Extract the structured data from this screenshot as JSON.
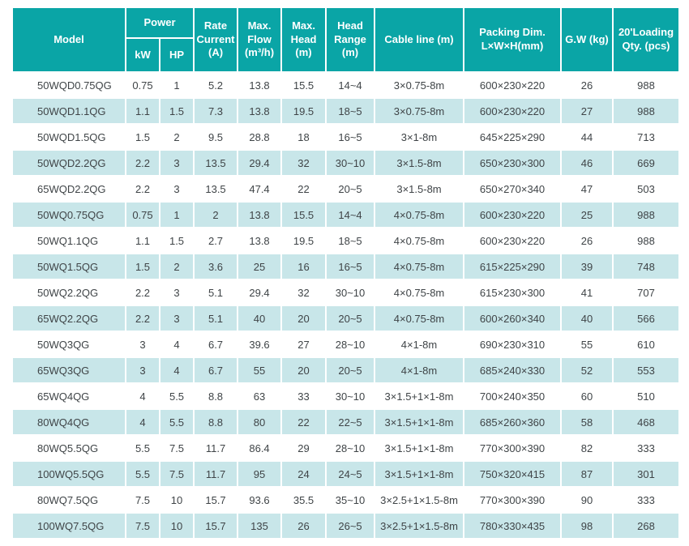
{
  "colors": {
    "header_teal": "#0aa5a6",
    "stripe_blue": "#c8e6e9",
    "text_dark": "#3f4447",
    "header_text": "#ffffff"
  },
  "table": {
    "columns": {
      "model": "Model",
      "power": "Power",
      "kw": "kW",
      "hp": "HP",
      "rate_current": "Rate Current (A)",
      "max_flow": "Max. Flow (m³/h)",
      "max_head": "Max. Head (m)",
      "head_range": "Head Range (m)",
      "cable_line": "Cable line (m)",
      "packing_dim": "Packing Dim. L×W×H(mm)",
      "gw": "G.W (kg)",
      "loading_qty": "20'Loading Qty. (pcs)"
    },
    "rows": [
      [
        "50WQD0.75QG",
        "0.75",
        "1",
        "5.2",
        "13.8",
        "15.5",
        "14~4",
        "3×0.75-8m",
        "600×230×220",
        "26",
        "988"
      ],
      [
        "50WQD1.1QG",
        "1.1",
        "1.5",
        "7.3",
        "13.8",
        "19.5",
        "18~5",
        "3×0.75-8m",
        "600×230×220",
        "27",
        "988"
      ],
      [
        "50WQD1.5QG",
        "1.5",
        "2",
        "9.5",
        "28.8",
        "18",
        "16~5",
        "3×1-8m",
        "645×225×290",
        "44",
        "713"
      ],
      [
        "50WQD2.2QG",
        "2.2",
        "3",
        "13.5",
        "29.4",
        "32",
        "30~10",
        "3×1.5-8m",
        "650×230×300",
        "46",
        "669"
      ],
      [
        "65WQD2.2QG",
        "2.2",
        "3",
        "13.5",
        "47.4",
        "22",
        "20~5",
        "3×1.5-8m",
        "650×270×340",
        "47",
        "503"
      ],
      [
        "50WQ0.75QG",
        "0.75",
        "1",
        "2",
        "13.8",
        "15.5",
        "14~4",
        "4×0.75-8m",
        "600×230×220",
        "25",
        "988"
      ],
      [
        "50WQ1.1QG",
        "1.1",
        "1.5",
        "2.7",
        "13.8",
        "19.5",
        "18~5",
        "4×0.75-8m",
        "600×230×220",
        "26",
        "988"
      ],
      [
        "50WQ1.5QG",
        "1.5",
        "2",
        "3.6",
        "25",
        "16",
        "16~5",
        "4×0.75-8m",
        "615×225×290",
        "39",
        "748"
      ],
      [
        "50WQ2.2QG",
        "2.2",
        "3",
        "5.1",
        "29.4",
        "32",
        "30~10",
        "4×0.75-8m",
        "615×230×300",
        "41",
        "707"
      ],
      [
        "65WQ2.2QG",
        "2.2",
        "3",
        "5.1",
        "40",
        "20",
        "20~5",
        "4×0.75-8m",
        "600×260×340",
        "40",
        "566"
      ],
      [
        "50WQ3QG",
        "3",
        "4",
        "6.7",
        "39.6",
        "27",
        "28~10",
        "4×1-8m",
        "690×230×310",
        "55",
        "610"
      ],
      [
        "65WQ3QG",
        "3",
        "4",
        "6.7",
        "55",
        "20",
        "20~5",
        "4×1-8m",
        "685×240×330",
        "52",
        "553"
      ],
      [
        "65WQ4QG",
        "4",
        "5.5",
        "8.8",
        "63",
        "33",
        "30~10",
        "3×1.5+1×1-8m",
        "700×240×350",
        "60",
        "510"
      ],
      [
        "80WQ4QG",
        "4",
        "5.5",
        "8.8",
        "80",
        "22",
        "22~5",
        "3×1.5+1×1-8m",
        "685×260×360",
        "58",
        "468"
      ],
      [
        "80WQ5.5QG",
        "5.5",
        "7.5",
        "11.7",
        "86.4",
        "29",
        "28~10",
        "3×1.5+1×1-8m",
        "770×300×390",
        "82",
        "333"
      ],
      [
        "100WQ5.5QG",
        "5.5",
        "7.5",
        "11.7",
        "95",
        "24",
        "24~5",
        "3×1.5+1×1-8m",
        "750×320×415",
        "87",
        "301"
      ],
      [
        "80WQ7.5QG",
        "7.5",
        "10",
        "15.7",
        "93.6",
        "35.5",
        "35~10",
        "3×2.5+1×1.5-8m",
        "770×300×390",
        "90",
        "333"
      ],
      [
        "100WQ7.5QG",
        "7.5",
        "10",
        "15.7",
        "135",
        "26",
        "26~5",
        "3×2.5+1×1.5-8m",
        "780×330×435",
        "98",
        "268"
      ]
    ]
  }
}
